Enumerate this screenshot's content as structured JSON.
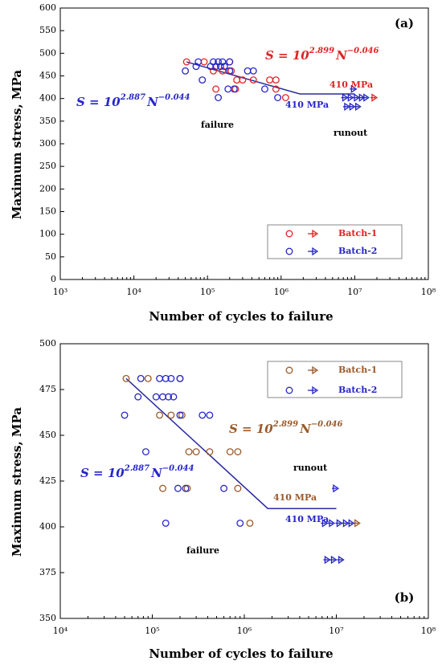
{
  "chart_data": [
    {
      "type": "scatter",
      "panel_label": "(a)",
      "x_label": "Number of cycles to failure",
      "y_label": "Maximum stress, MPa",
      "xscale": "log",
      "xlim": [
        1000,
        100000000
      ],
      "xticks": [
        {
          "value": 1000,
          "label": "10³"
        },
        {
          "value": 10000,
          "label": "10⁴"
        },
        {
          "value": 100000,
          "label": "10⁵"
        },
        {
          "value": 1000000,
          "label": "10⁶"
        },
        {
          "value": 10000000,
          "label": "10⁷"
        },
        {
          "value": 100000000,
          "label": "10⁸"
        }
      ],
      "ylim": [
        0,
        600
      ],
      "yticks": [
        0,
        50,
        100,
        150,
        200,
        250,
        300,
        350,
        400,
        450,
        500,
        550,
        600
      ],
      "legend": "lower right",
      "series": [
        {
          "name": "Batch-1",
          "color": "#e02424",
          "x": [
            52000,
            90000,
            200000,
            120000,
            160000,
            210000,
            250000,
            300000,
            420000,
            700000,
            850000,
            130000,
            240000,
            850000,
            1150000
          ],
          "values": [
            481,
            481,
            481,
            461,
            461,
            461,
            441,
            441,
            441,
            441,
            441,
            421,
            421,
            421,
            402
          ],
          "runout_x": [
            20000000
          ],
          "runout_values": [
            402
          ]
        },
        {
          "name": "Batch-2",
          "color": "#2626c8",
          "x": [
            50000,
            75000,
            120000,
            140000,
            160000,
            200000,
            110000,
            130000,
            150000,
            170000,
            200000,
            350000,
            420000,
            70000,
            85000,
            190000,
            230000,
            600000,
            140000,
            900000
          ],
          "values": [
            461,
            481,
            481,
            481,
            481,
            481,
            471,
            471,
            471,
            471,
            461,
            461,
            461,
            471,
            441,
            421,
            421,
            421,
            402,
            402
          ],
          "runout_x": [
            10500000,
            8000000,
            9500000,
            11500000,
            13500000,
            15500000,
            8500000,
            10000000,
            12000000
          ],
          "runout_values": [
            421,
            402,
            402,
            402,
            402,
            402,
            382,
            382,
            382
          ]
        }
      ],
      "fit_line": {
        "color": "#2a2aa0",
        "x": [
          52000,
          1800000,
          10000000
        ],
        "values": [
          481,
          410,
          410
        ]
      },
      "equations": [
        {
          "prefix": "S = 10",
          "exp": "2.899",
          "base": "N",
          "power": "−0.046",
          "color": "#e02424"
        },
        {
          "prefix": "S = 10",
          "exp": "2.887",
          "base": "N",
          "power": "−0.044",
          "color": "#2626c8"
        }
      ],
      "annotations": [
        {
          "text": "410 MPa",
          "color": "#e02424"
        },
        {
          "text": "410 MPa",
          "color": "#2626c8"
        },
        {
          "text": "failure",
          "color": "#000000"
        },
        {
          "text": "runout",
          "color": "#000000"
        }
      ]
    },
    {
      "type": "scatter",
      "panel_label": "(b)",
      "x_label": "Number of cycles to failure",
      "y_label": "Maximum stress, MPa",
      "xscale": "log",
      "xlim": [
        10000,
        100000000
      ],
      "xticks": [
        {
          "value": 10000,
          "label": "10⁴"
        },
        {
          "value": 100000,
          "label": "10⁵"
        },
        {
          "value": 1000000,
          "label": "10⁶"
        },
        {
          "value": 10000000,
          "label": "10⁷"
        },
        {
          "value": 100000000,
          "label": "10⁸"
        }
      ],
      "ylim": [
        350,
        500
      ],
      "yticks": [
        350,
        375,
        400,
        425,
        450,
        475,
        500
      ],
      "legend": "upper right",
      "series": [
        {
          "name": "Batch-1",
          "color": "#9b5a2a",
          "x": [
            52000,
            90000,
            200000,
            120000,
            160000,
            210000,
            250000,
            300000,
            420000,
            700000,
            850000,
            130000,
            240000,
            850000,
            1150000
          ],
          "values": [
            481,
            481,
            481,
            461,
            461,
            461,
            441,
            441,
            441,
            441,
            441,
            421,
            421,
            421,
            402
          ],
          "runout_x": [
            18000000
          ],
          "runout_values": [
            402
          ]
        },
        {
          "name": "Batch-2",
          "color": "#2626c8",
          "x": [
            50000,
            75000,
            120000,
            140000,
            160000,
            200000,
            110000,
            130000,
            150000,
            170000,
            200000,
            350000,
            420000,
            70000,
            85000,
            190000,
            230000,
            600000,
            140000,
            900000
          ],
          "values": [
            461,
            481,
            481,
            481,
            481,
            481,
            471,
            471,
            471,
            471,
            461,
            461,
            461,
            471,
            441,
            421,
            421,
            421,
            402,
            402
          ],
          "runout_x": [
            10500000,
            8000000,
            9500000,
            11500000,
            13500000,
            15500000,
            8500000,
            10000000,
            12000000
          ],
          "runout_values": [
            421,
            402,
            402,
            402,
            402,
            402,
            382,
            382,
            382
          ]
        }
      ],
      "fit_line": {
        "color": "#2a2aa0",
        "x": [
          52000,
          1800000,
          10000000
        ],
        "values": [
          481,
          410,
          410
        ]
      },
      "equations": [
        {
          "prefix": "S = 10",
          "exp": "2.899",
          "base": "N",
          "power": "−0.046",
          "color": "#9b5a2a"
        },
        {
          "prefix": "S = 10",
          "exp": "2.887",
          "base": "N",
          "power": "−0.044",
          "color": "#2626c8"
        }
      ],
      "annotations": [
        {
          "text": "410 MPa",
          "color": "#9b5a2a"
        },
        {
          "text": "410 MPa",
          "color": "#2626c8"
        },
        {
          "text": "runout",
          "color": "#000000"
        },
        {
          "text": "failure",
          "color": "#000000"
        }
      ]
    }
  ]
}
